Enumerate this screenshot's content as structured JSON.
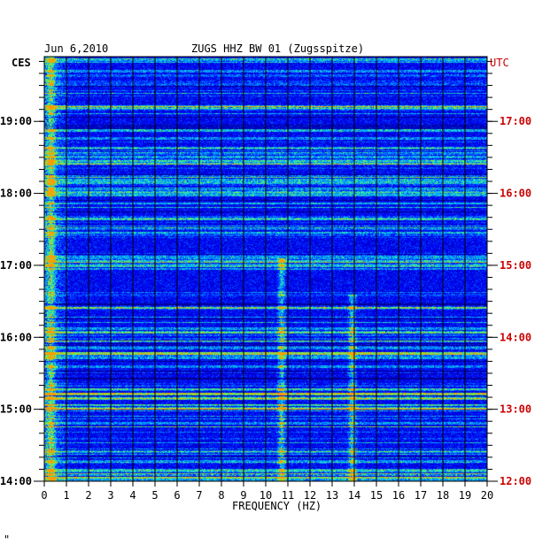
{
  "chart_data": {
    "type": "heatmap",
    "date": "Jun 6,2010",
    "title": "ZUGS HHZ BW 01 (Zugsspitze)",
    "left_timezone": "CES",
    "right_timezone": "UTC",
    "xlabel": "FREQUENCY (HZ)",
    "xlim": [
      0,
      20
    ],
    "x_ticks": [
      "0",
      "1",
      "2",
      "3",
      "4",
      "5",
      "6",
      "7",
      "8",
      "9",
      "10",
      "11",
      "12",
      "13",
      "14",
      "15",
      "16",
      "17",
      "18",
      "19",
      "20"
    ],
    "left_ticks": [
      {
        "label": "19:00",
        "hour": 19
      },
      {
        "label": "18:00",
        "hour": 18
      },
      {
        "label": "17:00",
        "hour": 17
      },
      {
        "label": "16:00",
        "hour": 16
      },
      {
        "label": "15:00",
        "hour": 15
      },
      {
        "label": "14:00",
        "hour": 14
      }
    ],
    "right_ticks": [
      {
        "label": "17:00",
        "hour": 19
      },
      {
        "label": "16:00",
        "hour": 18
      },
      {
        "label": "15:00",
        "hour": 17
      },
      {
        "label": "14:00",
        "hour": 16
      },
      {
        "label": "13:00",
        "hour": 15
      },
      {
        "label": "12:00",
        "hour": 14
      }
    ],
    "ylim_hours_ces": [
      14.0,
      19.9
    ],
    "colors": {
      "background": "#0000c8",
      "low": "#0000ff",
      "mid": "#00c8ff",
      "high": "#ffff00",
      "axis_right_text": "#cc0000",
      "axis_text": "#000000"
    },
    "features": [
      {
        "description_freq_hz": 10.7,
        "hours": [
          14.0,
          17.1
        ]
      },
      {
        "description_freq_hz": 13.9,
        "hours": [
          14.0,
          16.6
        ]
      },
      {
        "description_freq_hz": 0.3,
        "hours": [
          14.0,
          19.9
        ]
      }
    ]
  },
  "footer_mark": "\""
}
